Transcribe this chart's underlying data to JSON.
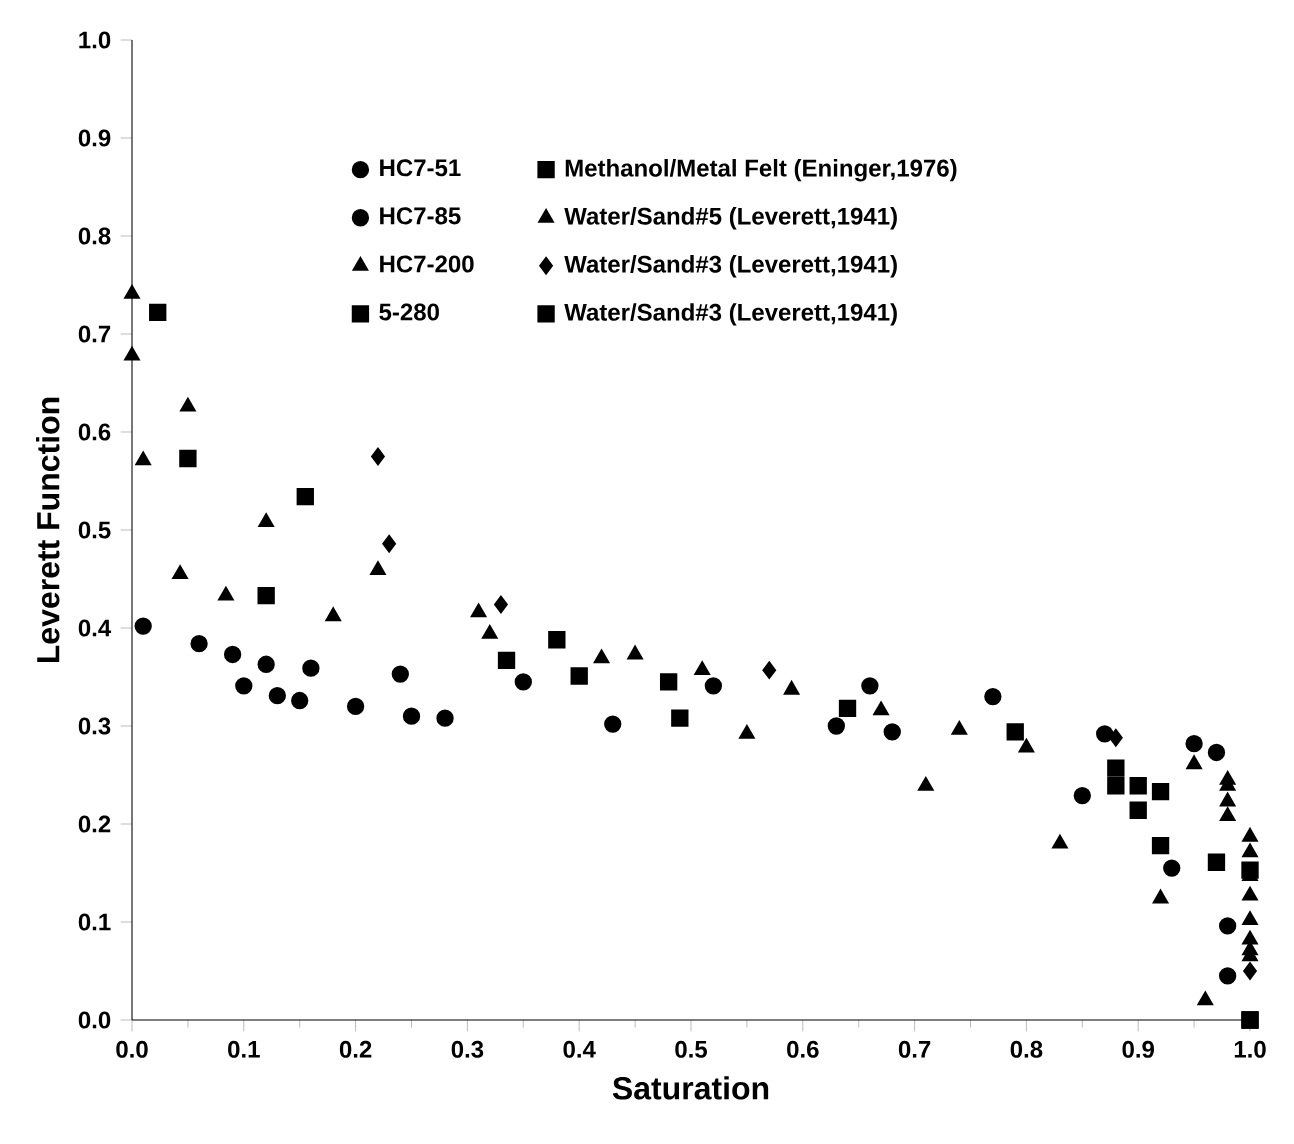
{
  "chart_data": {
    "type": "scatter",
    "xlabel": "Saturation",
    "ylabel": "Leverett Function",
    "xlim": [
      0,
      1
    ],
    "ylim": [
      0,
      1
    ],
    "xticks": [
      {
        "value": 0,
        "label": "0.0"
      },
      {
        "value": 0.1,
        "label": "0.1"
      },
      {
        "value": 0.2,
        "label": "0.2"
      },
      {
        "value": 0.3,
        "label": "0.3"
      },
      {
        "value": 0.4,
        "label": "0.4"
      },
      {
        "value": 0.5,
        "label": "0.5"
      },
      {
        "value": 0.6,
        "label": "0.6"
      },
      {
        "value": 0.7,
        "label": "0.7"
      },
      {
        "value": 0.8,
        "label": "0.8"
      },
      {
        "value": 0.9,
        "label": "0.9"
      },
      {
        "value": 1,
        "label": "1.0"
      }
    ],
    "yticks": [
      {
        "value": 0,
        "label": "0.0"
      },
      {
        "value": 0.1,
        "label": "0.1"
      },
      {
        "value": 0.2,
        "label": "0.2"
      },
      {
        "value": 0.3,
        "label": "0.3"
      },
      {
        "value": 0.4,
        "label": "0.4"
      },
      {
        "value": 0.5,
        "label": "0.5"
      },
      {
        "value": 0.6,
        "label": "0.6"
      },
      {
        "value": 0.7,
        "label": "0.7"
      },
      {
        "value": 0.8,
        "label": "0.8"
      },
      {
        "value": 0.9,
        "label": "0.9"
      },
      {
        "value": 1,
        "label": "1.0"
      }
    ],
    "legend": "top",
    "grid": false,
    "series": [
      {
        "name": "HC7-51",
        "color": "#000000",
        "marker": "circle",
        "x": [
          0.01,
          0.06,
          0.09,
          0.12,
          0.16,
          0.24,
          0.35,
          0.52,
          0.66,
          0.77,
          0.85,
          0.93,
          0.98
        ],
        "values": [
          0.402,
          0.384,
          0.373,
          0.363,
          0.359,
          0.353,
          0.345,
          0.341,
          0.341,
          0.33,
          0.229,
          0.155,
          0.045
        ]
      },
      {
        "name": "Methanol/Metal Felt (Eninger,1976)",
        "color": "#000000",
        "marker": "square",
        "x": [
          0.023,
          0.05,
          0.12,
          0.49,
          0.92,
          0.97,
          1.0
        ],
        "values": [
          0.722,
          0.573,
          0.433,
          0.308,
          0.233,
          0.161,
          0.0
        ]
      },
      {
        "name": "HC7-85",
        "color": "#000000",
        "marker": "circle",
        "x": [
          0.1,
          0.13,
          0.15,
          0.2,
          0.25,
          0.28,
          0.43,
          0.63,
          0.68,
          0.87,
          0.95,
          0.97,
          0.98
        ],
        "values": [
          0.341,
          0.331,
          0.326,
          0.32,
          0.31,
          0.308,
          0.302,
          0.3,
          0.294,
          0.292,
          0.282,
          0.273,
          0.096
        ]
      },
      {
        "name": "Water/Sand#5 (Leverett,1941)",
        "color": "#000000",
        "marker": "triangle",
        "x": [
          0.0,
          0.0,
          0.01,
          0.05,
          0.12,
          0.22,
          0.31,
          0.42,
          0.55,
          0.71,
          0.83,
          0.92,
          0.96
        ],
        "values": [
          0.741,
          0.678,
          0.571,
          0.626,
          0.508,
          0.459,
          0.416,
          0.369,
          0.292,
          0.239,
          0.18,
          0.124,
          0.02
        ]
      },
      {
        "name": "HC7-200",
        "color": "#000000",
        "marker": "triangle",
        "x": [
          0.043,
          0.084,
          0.18,
          0.32,
          0.45,
          0.51,
          0.59,
          0.67,
          0.74,
          0.8,
          0.95,
          0.98,
          0.98,
          0.98,
          0.98,
          1.0,
          1.0,
          1.0,
          1.0,
          1.0,
          1.0,
          1.0,
          1.0
        ],
        "values": [
          0.455,
          0.433,
          0.412,
          0.394,
          0.373,
          0.357,
          0.337,
          0.316,
          0.296,
          0.278,
          0.261,
          0.245,
          0.239,
          0.223,
          0.208,
          0.187,
          0.171,
          0.147,
          0.127,
          0.102,
          0.082,
          0.071,
          0.065
        ]
      },
      {
        "name": "Water/Sand#3 (Leverett,1941)",
        "color": "#000000",
        "marker": "diamond",
        "x": [
          0.22,
          0.23,
          0.33,
          0.57,
          0.88,
          1.0
        ],
        "values": [
          0.575,
          0.486,
          0.424,
          0.357,
          0.288,
          0.05
        ]
      },
      {
        "name": "5-280",
        "color": "#000000",
        "marker": "square",
        "x": [
          0.335,
          0.4,
          0.48,
          0.64,
          0.79,
          0.88,
          0.88,
          0.9,
          0.9,
          0.92,
          1.0,
          1.0
        ],
        "values": [
          0.367,
          0.351,
          0.345,
          0.318,
          0.294,
          0.257,
          0.239,
          0.239,
          0.214,
          0.178,
          0.153,
          0.0
        ]
      },
      {
        "name": "Water/Sand#3 (Leverett,1941)",
        "color": "#000000",
        "marker": "square",
        "x": [
          0.155,
          0.38
        ],
        "values": [
          0.534,
          0.388
        ]
      }
    ]
  }
}
